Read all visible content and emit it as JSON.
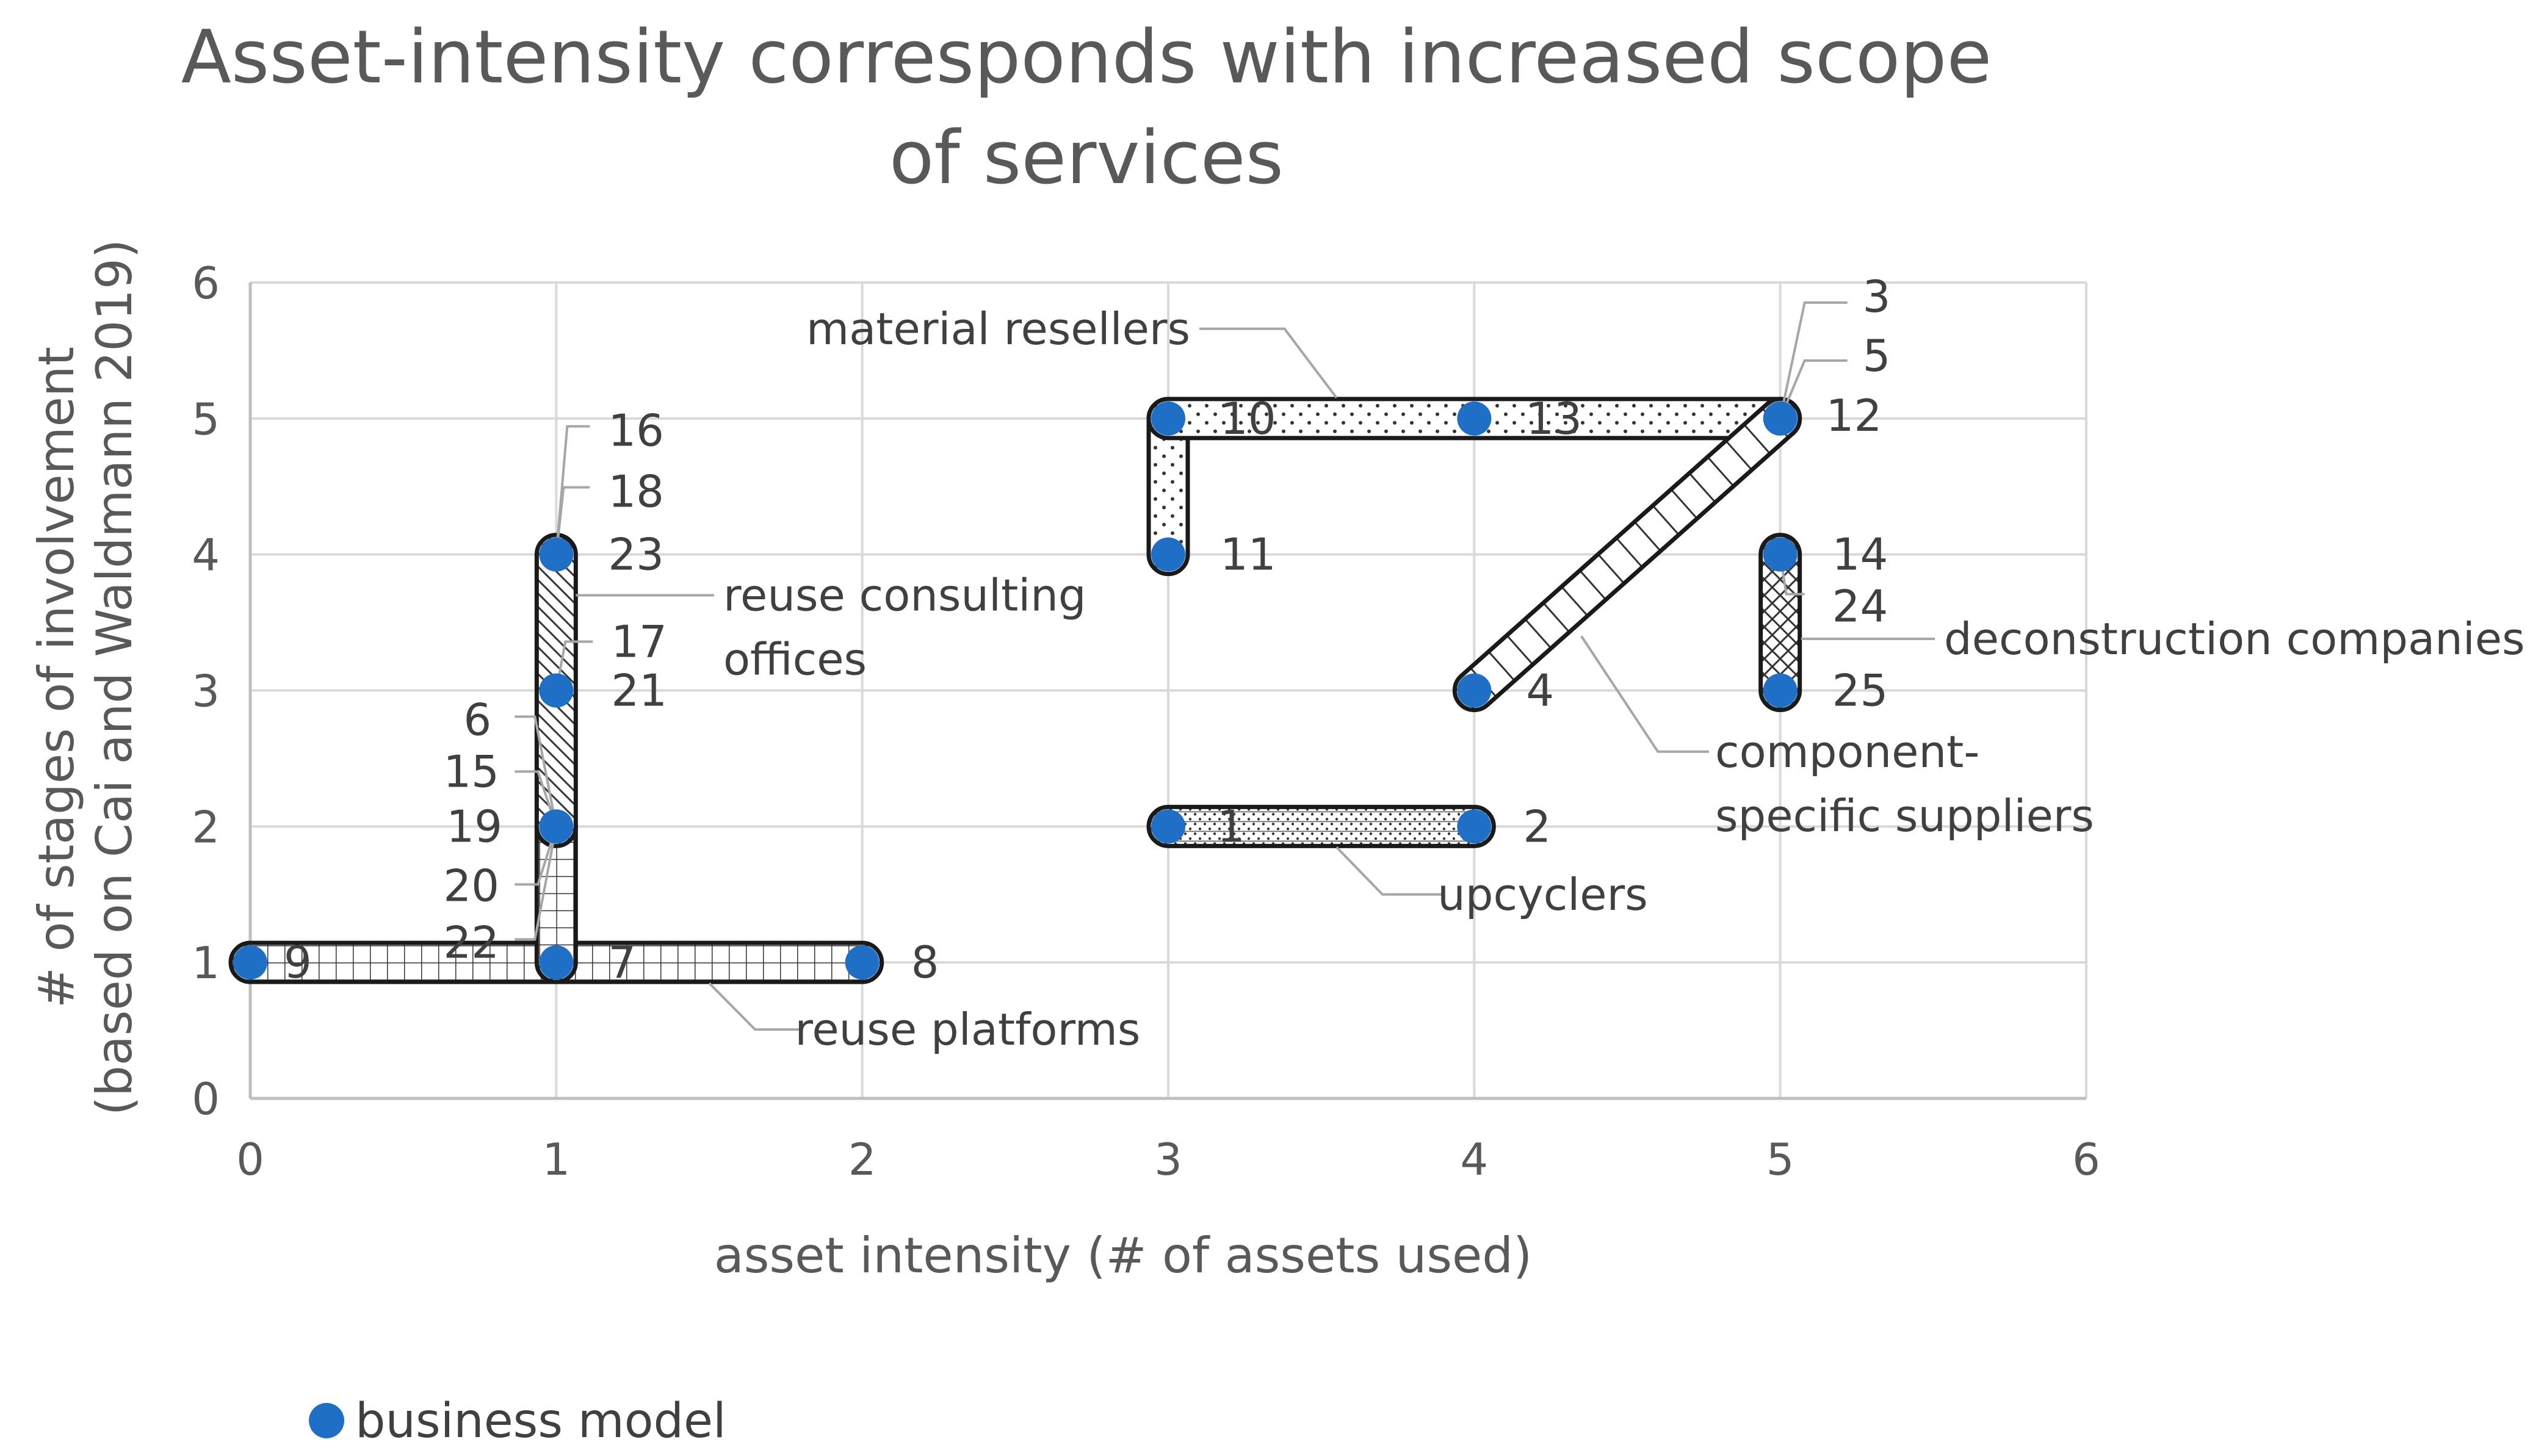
{
  "chart_data": {
    "type": "scatter",
    "title": "Asset-intensity corresponds with increased scope of services",
    "xlabel": "asset intensity (# of assets used)",
    "ylabel": "# of stages of involvement (based on Cai and Waldmann 2019)",
    "xlim": [
      0,
      6
    ],
    "ylim": [
      0,
      6
    ],
    "x_ticks": [
      "0",
      "1",
      "2",
      "3",
      "4",
      "5",
      "6"
    ],
    "y_ticks": [
      "0",
      "1",
      "2",
      "3",
      "4",
      "5",
      "6"
    ],
    "grid": true,
    "legend_position": "bottom-left",
    "colors": {
      "marker": "#1f6fc6",
      "band_outline": "#1a1a1a",
      "grid": "#d9d9d9",
      "text": "#595959"
    },
    "series": [
      {
        "name": "business model",
        "points": [
          {
            "id": "1",
            "x": 3,
            "y": 2
          },
          {
            "id": "2",
            "x": 4,
            "y": 2
          },
          {
            "id": "3",
            "x": 5,
            "y": 5
          },
          {
            "id": "4",
            "x": 4,
            "y": 3
          },
          {
            "id": "5",
            "x": 5,
            "y": 5
          },
          {
            "id": "6",
            "x": 1,
            "y": 2
          },
          {
            "id": "7",
            "x": 1,
            "y": 1
          },
          {
            "id": "8",
            "x": 2,
            "y": 1
          },
          {
            "id": "9",
            "x": 0,
            "y": 1
          },
          {
            "id": "10",
            "x": 3,
            "y": 5
          },
          {
            "id": "11",
            "x": 3,
            "y": 4
          },
          {
            "id": "12",
            "x": 5,
            "y": 5
          },
          {
            "id": "13",
            "x": 4,
            "y": 5
          },
          {
            "id": "14",
            "x": 5,
            "y": 4
          },
          {
            "id": "15",
            "x": 1,
            "y": 2
          },
          {
            "id": "16",
            "x": 1,
            "y": 4
          },
          {
            "id": "17",
            "x": 1,
            "y": 3
          },
          {
            "id": "18",
            "x": 1,
            "y": 4
          },
          {
            "id": "19",
            "x": 1,
            "y": 2
          },
          {
            "id": "20",
            "x": 1,
            "y": 2
          },
          {
            "id": "21",
            "x": 1,
            "y": 3
          },
          {
            "id": "22",
            "x": 1,
            "y": 2
          },
          {
            "id": "23",
            "x": 1,
            "y": 4
          },
          {
            "id": "24",
            "x": 5,
            "y": 4
          },
          {
            "id": "25",
            "x": 5,
            "y": 3
          }
        ]
      }
    ],
    "groups": [
      {
        "name": "reuse platforms",
        "members": [
          "9",
          "7",
          "8",
          "20",
          "22"
        ]
      },
      {
        "name": "reuse consulting offices",
        "members": [
          "16",
          "18",
          "23",
          "17",
          "21",
          "6",
          "15",
          "19"
        ]
      },
      {
        "name": "material resellers",
        "members": [
          "10",
          "13",
          "12",
          "11"
        ]
      },
      {
        "name": "deconstruction companies",
        "members": [
          "14",
          "24",
          "25"
        ]
      },
      {
        "name": "component-specific suppliers",
        "members": [
          "4",
          "3",
          "5"
        ]
      },
      {
        "name": "upcyclers",
        "members": [
          "1",
          "2"
        ]
      }
    ],
    "group_label_lines": {
      "reuse_consulting": [
        "reuse consulting",
        "offices"
      ],
      "component_specific": [
        "component-",
        "specific suppliers"
      ]
    },
    "legend": {
      "label": "business model"
    }
  }
}
